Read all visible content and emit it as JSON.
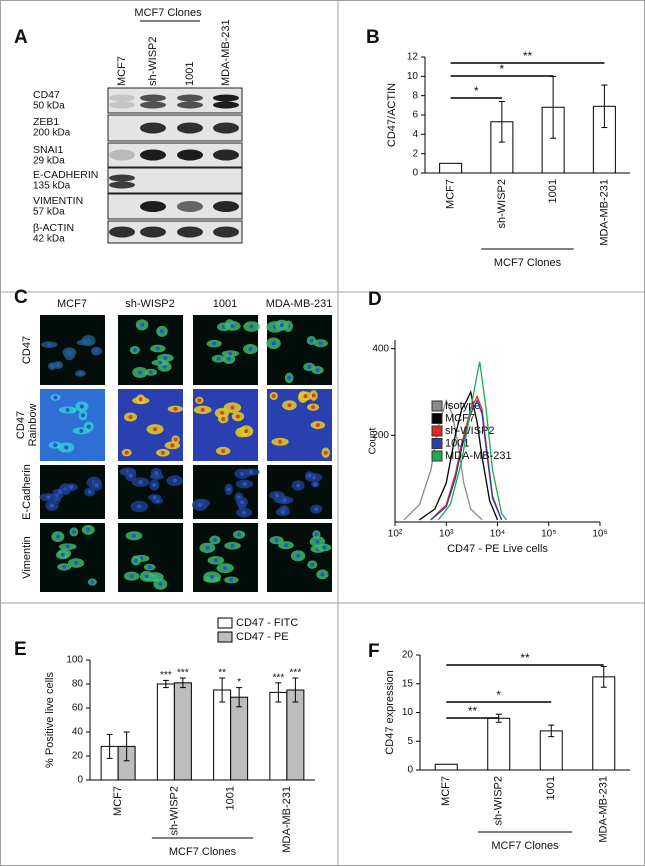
{
  "panel_labels": [
    "A",
    "B",
    "C",
    "D",
    "E",
    "F"
  ],
  "blot": {
    "header": "MCF7 Clones",
    "lanes": [
      "MCF7",
      "sh-WISP2",
      "1001",
      "MDA-MB-231"
    ],
    "rows": [
      {
        "name": "CD47",
        "size": "50 kDa"
      },
      {
        "name": "ZEB1",
        "size": "200 kDa"
      },
      {
        "name": "SNAI1",
        "size": "29 kDa"
      },
      {
        "name": "E-CADHERIN",
        "size": "135 kDa"
      },
      {
        "name": "VIMENTIN",
        "size": "57 kDa"
      },
      {
        "name": "β-ACTIN",
        "size": "42 kDa"
      }
    ]
  },
  "micrographs": {
    "columns": [
      "MCF7",
      "sh-WISP2",
      "1001",
      "MDA-MB-231"
    ],
    "rows": [
      [
        "CD47"
      ],
      [
        "CD47",
        "Rainbow"
      ],
      [
        "E-Cadherin"
      ],
      [
        "Vimentin"
      ]
    ]
  },
  "chart_data": [
    {
      "type": "bar",
      "ylabel": "CD47/ACTIN",
      "categories": [
        "MCF7",
        "sh-WISP2",
        "1001",
        "MDA-MB-231"
      ],
      "values": [
        1,
        5.3,
        6.8,
        6.9
      ],
      "errors": [
        null,
        2.1,
        3.2,
        2.2
      ],
      "color": "#ffffff",
      "ylim": [
        0,
        12
      ],
      "yticks": [
        0,
        2,
        4,
        6,
        8,
        10,
        12
      ],
      "comparisons": [
        {
          "label": "*",
          "categories": [
            "MCF7",
            "sh-WISP2"
          ]
        },
        {
          "label": "*",
          "categories": [
            "MCF7",
            "1001"
          ]
        },
        {
          "label": "**",
          "categories": [
            "MCF7",
            "MDA-MB-231"
          ]
        }
      ],
      "group": {
        "label": "MCF7 Clones",
        "categories": [
          "sh-WISP2",
          "1001"
        ]
      }
    },
    {
      "type": "line",
      "xlabel": "CD47 - PE Live cells",
      "ylabel": "Count",
      "xscale": "log",
      "xlim": [
        100,
        1000000
      ],
      "xticks": [
        {
          "value": 100,
          "label": "10²"
        },
        {
          "value": 1000,
          "label": "10³"
        },
        {
          "value": 10000,
          "label": "10⁴"
        },
        {
          "value": 100000,
          "label": "10⁵"
        },
        {
          "value": 1000000,
          "label": "10⁶"
        }
      ],
      "ylim": [
        0,
        420
      ],
      "yticks": [
        200,
        400
      ],
      "series": [
        {
          "name": "Isotype",
          "color": "#8a8a8a",
          "x": [
            150,
            300,
            500,
            700,
            1000,
            1300,
            1700,
            2200,
            3000,
            5000
          ],
          "values": [
            5,
            40,
            120,
            220,
            280,
            250,
            180,
            90,
            30,
            5
          ]
        },
        {
          "name": "MCF7",
          "color": "#000000",
          "x": [
            300,
            600,
            1000,
            1500,
            2000,
            2500,
            3000,
            4000,
            5000,
            7000,
            10000
          ],
          "values": [
            5,
            30,
            90,
            200,
            260,
            280,
            300,
            230,
            150,
            50,
            5
          ]
        },
        {
          "name": "sh-WISP2",
          "color": "#e32626",
          "x": [
            500,
            1000,
            1500,
            2000,
            3000,
            4000,
            5000,
            6000,
            8000,
            12000
          ],
          "values": [
            5,
            40,
            110,
            180,
            260,
            290,
            260,
            180,
            60,
            5
          ]
        },
        {
          "name": "1001",
          "color": "#2b3fa8",
          "x": [
            500,
            1000,
            1500,
            2000,
            3000,
            4000,
            5000,
            6000,
            8000,
            12000
          ],
          "values": [
            5,
            35,
            100,
            170,
            250,
            280,
            250,
            170,
            55,
            5
          ]
        },
        {
          "name": "MDA-MB-231",
          "color": "#1faa4f",
          "x": [
            700,
            1200,
            2000,
            3000,
            4000,
            4500,
            5000,
            6000,
            8000,
            12000,
            15000
          ],
          "values": [
            5,
            40,
            140,
            260,
            340,
            370,
            330,
            260,
            120,
            20,
            5
          ]
        }
      ]
    },
    {
      "type": "bar",
      "ylabel": "% Positive live cells",
      "categories": [
        "MCF7",
        "sh-WISP2",
        "1001",
        "MDA-MB-231"
      ],
      "ylim": [
        0,
        100
      ],
      "yticks": [
        0,
        20,
        40,
        60,
        80,
        100
      ],
      "series": [
        {
          "name": "CD47 - FITC",
          "color": "#ffffff",
          "values": [
            28,
            80,
            75,
            73
          ],
          "errors": [
            10,
            3,
            10,
            8
          ],
          "significance": [
            null,
            "***",
            "**",
            "***"
          ]
        },
        {
          "name": "CD47 - PE",
          "color": "#bdbdbd",
          "values": [
            28,
            81,
            69,
            75
          ],
          "errors": [
            12,
            4,
            8,
            10
          ],
          "significance": [
            null,
            "***",
            "*",
            "***"
          ]
        }
      ],
      "group": {
        "label": "MCF7 Clones",
        "categories": [
          "sh-WISP2",
          "1001"
        ]
      }
    },
    {
      "type": "bar",
      "ylabel": "CD47 expression",
      "categories": [
        "MCF7",
        "sh-WISP2",
        "1001",
        "MDA-MB-231"
      ],
      "values": [
        1,
        9,
        6.8,
        16.2
      ],
      "errors": [
        null,
        0.7,
        1,
        1.8
      ],
      "color": "#ffffff",
      "ylim": [
        0,
        20
      ],
      "yticks": [
        0,
        5,
        10,
        15,
        20
      ],
      "comparisons": [
        {
          "label": "**",
          "categories": [
            "MCF7",
            "sh-WISP2"
          ]
        },
        {
          "label": "*",
          "categories": [
            "MCF7",
            "1001"
          ]
        },
        {
          "label": "**",
          "categories": [
            "MCF7",
            "MDA-MB-231"
          ]
        }
      ],
      "group": {
        "label": "MCF7 Clones",
        "categories": [
          "sh-WISP2",
          "1001"
        ]
      }
    }
  ]
}
